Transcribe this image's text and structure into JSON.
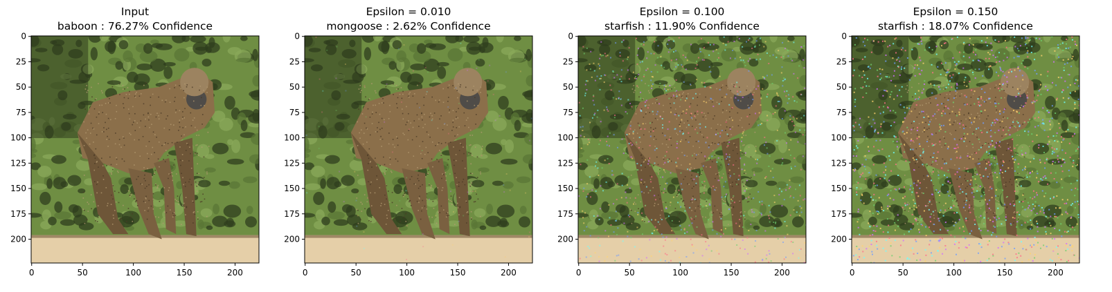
{
  "colors": {
    "background": "#ffffff",
    "axis": "#000000",
    "foliage_dark": "#2f3d1e",
    "foliage_light": "#6f8e43",
    "fur": "#8b6f4a",
    "ground": "#e5cfa8"
  },
  "chart_data": [
    {
      "type": "image",
      "title_line1": "Input",
      "title_line2": "baboon : 76.27% Confidence",
      "epsilon": 0.0,
      "label": "baboon",
      "confidence": 76.27,
      "xlim": [
        -0.5,
        223.5
      ],
      "ylim": [
        223.5,
        -0.5
      ],
      "xticks": [
        0,
        50,
        100,
        150,
        200
      ],
      "yticks": [
        0,
        25,
        50,
        75,
        100,
        125,
        150,
        175,
        200
      ]
    },
    {
      "type": "image",
      "title_line1": "Epsilon = 0.010",
      "title_line2": "mongoose : 2.62% Confidence",
      "epsilon": 0.01,
      "label": "mongoose",
      "confidence": 2.62,
      "xlim": [
        -0.5,
        223.5
      ],
      "ylim": [
        223.5,
        -0.5
      ],
      "xticks": [
        0,
        50,
        100,
        150,
        200
      ],
      "yticks": [
        0,
        25,
        50,
        75,
        100,
        125,
        150,
        175,
        200
      ]
    },
    {
      "type": "image",
      "title_line1": "Epsilon = 0.100",
      "title_line2": "starfish : 11.90% Confidence",
      "epsilon": 0.1,
      "label": "starfish",
      "confidence": 11.9,
      "xlim": [
        -0.5,
        223.5
      ],
      "ylim": [
        223.5,
        -0.5
      ],
      "xticks": [
        0,
        50,
        100,
        150,
        200
      ],
      "yticks": [
        0,
        25,
        50,
        75,
        100,
        125,
        150,
        175,
        200
      ]
    },
    {
      "type": "image",
      "title_line1": "Epsilon = 0.150",
      "title_line2": "starfish : 18.07% Confidence",
      "epsilon": 0.15,
      "label": "starfish",
      "confidence": 18.07,
      "xlim": [
        -0.5,
        223.5
      ],
      "ylim": [
        223.5,
        -0.5
      ],
      "xticks": [
        0,
        50,
        100,
        150,
        200
      ],
      "yticks": [
        0,
        25,
        50,
        75,
        100,
        125,
        150,
        175,
        200
      ]
    }
  ]
}
